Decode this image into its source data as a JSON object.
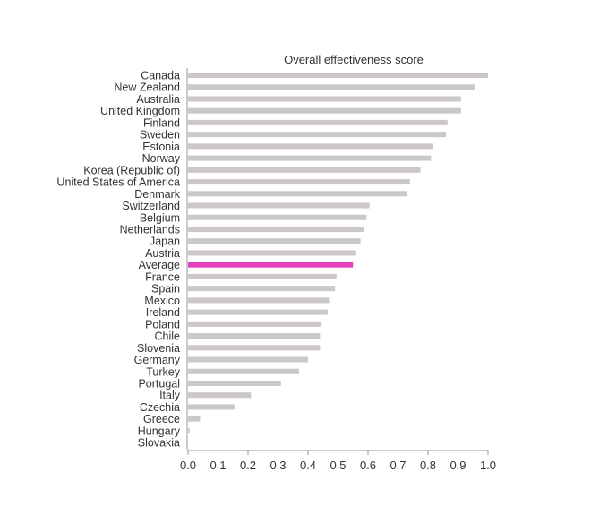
{
  "chart_data": {
    "type": "bar",
    "orientation": "horizontal",
    "title": "Overall effectiveness score",
    "xlabel": "",
    "ylabel": "",
    "xlim": [
      0,
      1
    ],
    "x_ticks": [
      "0.0",
      "0.1",
      "0.2",
      "0.3",
      "0.4",
      "0.5",
      "0.6",
      "0.7",
      "0.8",
      "0.9",
      "1.0"
    ],
    "grid": false,
    "bar_color": "#ccc7c8",
    "highlight_color": "#e83fbf",
    "highlight_category": "Average",
    "categories": [
      "Canada",
      "New Zealand",
      "Australia",
      "United Kingdom",
      "Finland",
      "Sweden",
      "Estonia",
      "Norway",
      "Korea (Republic of)",
      "United States of America",
      "Denmark",
      "Switzerland",
      "Belgium",
      "Netherlands",
      "Japan",
      "Austria",
      "Average",
      "France",
      "Spain",
      "Mexico",
      "Ireland",
      "Poland",
      "Chile",
      "Slovenia",
      "Germany",
      "Turkey",
      "Portugal",
      "Italy",
      "Czechia",
      "Greece",
      "Hungary",
      "Slovakia"
    ],
    "values": [
      1.0,
      0.955,
      0.91,
      0.91,
      0.865,
      0.86,
      0.815,
      0.81,
      0.775,
      0.74,
      0.73,
      0.605,
      0.595,
      0.585,
      0.575,
      0.56,
      0.55,
      0.495,
      0.49,
      0.47,
      0.465,
      0.445,
      0.44,
      0.44,
      0.4,
      0.37,
      0.31,
      0.21,
      0.155,
      0.04,
      0.005,
      0.0
    ]
  }
}
